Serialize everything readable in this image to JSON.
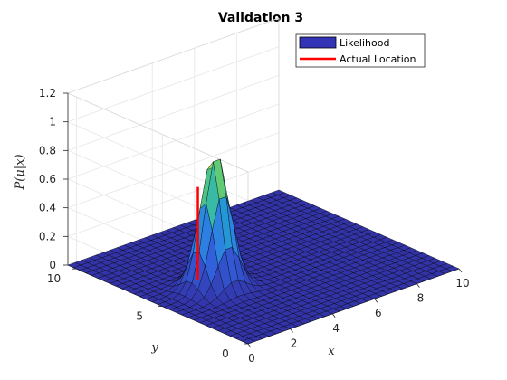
{
  "chart_data": {
    "type": "surface",
    "title": "Validation 3",
    "xlabel": "x",
    "ylabel": "y",
    "zlabel": "P(μ|x)",
    "xlim": [
      0,
      10
    ],
    "ylim": [
      0,
      10.5
    ],
    "zlim": [
      0,
      1.2
    ],
    "x_ticks": [
      "0",
      "2",
      "4",
      "6",
      "8",
      "10"
    ],
    "y_ticks": [
      "0",
      "5",
      "10"
    ],
    "z_ticks": [
      "0",
      "0.2",
      "0.4",
      "0.6",
      "0.8",
      "1",
      "1.2"
    ],
    "grid": true,
    "legend_position": "top-right",
    "series": [
      {
        "name": "Likelihood",
        "kind": "surface",
        "peak": {
          "x": 2.5,
          "y": 5.0,
          "z": 0.95
        },
        "spread_x": 0.55,
        "spread_y": 0.55,
        "face_color_low": "#3333a8",
        "face_color_high": "#e6e640"
      },
      {
        "name": "Actual Location",
        "kind": "line",
        "color": "#ff0000",
        "x": 2.5,
        "y": 6.0,
        "z": [
          0,
          0.65
        ]
      }
    ]
  }
}
